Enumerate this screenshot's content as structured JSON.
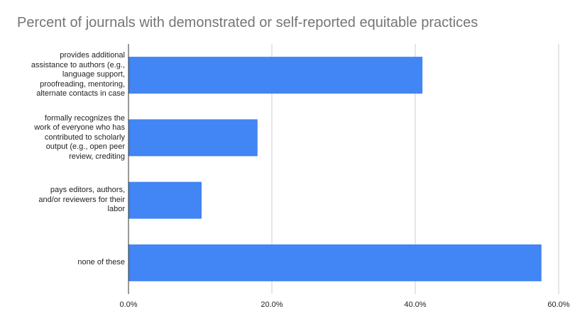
{
  "chart_data": {
    "type": "bar",
    "orientation": "horizontal",
    "title": "Percent of journals with demonstrated or self-reported equitable practices",
    "categories": [
      "provides additional assistance to authors (e.g., language support, proofreading, mentoring, alternate contacts in case",
      "formally recognizes the work of everyone who has contributed to scholarly output (e.g., open peer review, crediting",
      "pays editors, authors, and/or reviewers for their labor",
      "none of these"
    ],
    "category_lines": [
      [
        "provides additional",
        "assistance to authors (e.g.,",
        "language support,",
        "proofreading, mentoring,",
        "alternate contacts in case"
      ],
      [
        "formally recognizes the",
        "work of everyone who has",
        "contributed to scholarly",
        "output (e.g., open peer",
        "review, crediting"
      ],
      [
        "pays editors, authors,",
        "and/or reviewers for their",
        "labor"
      ],
      [
        "none of these"
      ]
    ],
    "values": [
      41.0,
      18.0,
      10.2,
      57.6
    ],
    "xlim": [
      0,
      60
    ],
    "xticks": [
      0,
      20,
      40,
      60
    ],
    "xtick_labels": [
      "0.0%",
      "20.0%",
      "40.0%",
      "60.0%"
    ],
    "xlabel": "",
    "ylabel": "",
    "grid": "vertical",
    "legend": "none",
    "bar_color": "#4285f4",
    "grid_color": "#cccccc",
    "axis_color": "#333333"
  }
}
